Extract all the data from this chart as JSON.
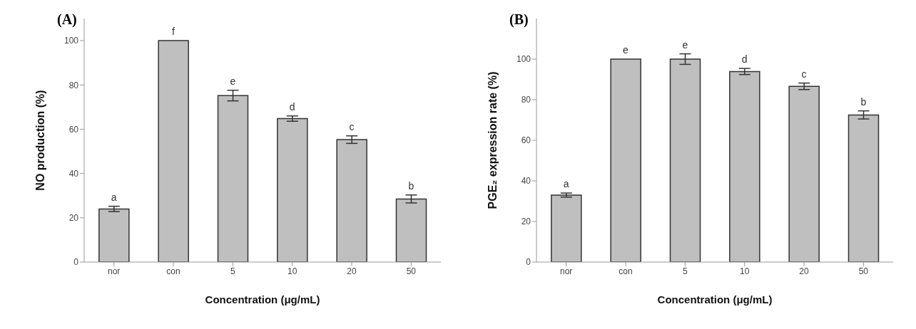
{
  "chart_data": [
    {
      "type": "bar",
      "title": "(A)",
      "xlabel": "Concentration (μg/mL)",
      "ylabel": "NO production (%)",
      "categories": [
        "nor",
        "con",
        "5",
        "10",
        "20",
        "50"
      ],
      "values": [
        24,
        100,
        75.2,
        64.8,
        55.3,
        28.5
      ],
      "errors": [
        1.2,
        null,
        2.4,
        1.2,
        1.7,
        1.8
      ],
      "color": "#bfbfbf",
      "ylim": [
        0,
        110
      ],
      "yticks": [
        0,
        20,
        40,
        60,
        80,
        100
      ],
      "grid": false,
      "annotations": [
        "a",
        "f",
        "e",
        "d",
        "c",
        "b"
      ]
    },
    {
      "type": "bar",
      "title": "(B)",
      "xlabel": "Concentration (μg/mL)",
      "ylabel": "PGE₂ expression rate (%)",
      "categories": [
        "nor",
        "con",
        "5",
        "10",
        "20",
        "50"
      ],
      "values": [
        33,
        100,
        100,
        93.9,
        86.6,
        72.5
      ],
      "errors": [
        1,
        null,
        2.6,
        1.5,
        1.6,
        2
      ],
      "color": "#bfbfbf",
      "ylim": [
        0,
        120
      ],
      "yticks": [
        0,
        20,
        40,
        60,
        80,
        100
      ],
      "grid": false,
      "annotations": [
        "a",
        "e",
        "e",
        "d",
        "c",
        "b"
      ]
    }
  ]
}
